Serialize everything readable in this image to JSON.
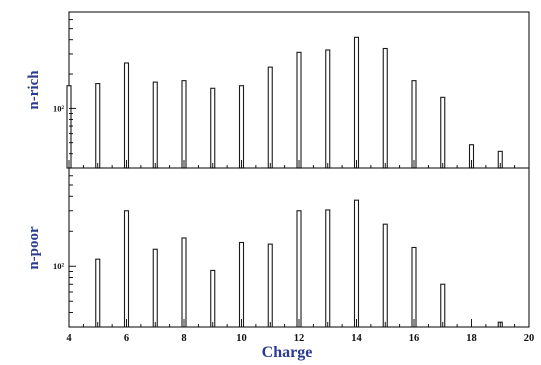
{
  "chart_data": {
    "type": "bar",
    "xlabel": "Charge",
    "x_ticks": [
      "4",
      "6",
      "8",
      "10",
      "12",
      "14",
      "16",
      "18",
      "20"
    ],
    "x_range": [
      4,
      20
    ],
    "y_scale": "log",
    "bar_color": "#1a1a1a",
    "panels": [
      {
        "ylabel": "n-rich",
        "y_tick_text": "10²",
        "y_tick_value": 100,
        "ylim": [
          30,
          700
        ],
        "x": [
          4,
          5,
          6,
          7,
          8,
          9,
          10,
          11,
          12,
          13,
          14,
          15,
          16,
          17,
          18,
          19
        ],
        "values": [
          158,
          165,
          250,
          170,
          175,
          150,
          158,
          230,
          310,
          325,
          420,
          335,
          175,
          125,
          48,
          42
        ]
      },
      {
        "ylabel": "n-poor",
        "y_tick_text": "10²",
        "y_tick_value": 100,
        "ylim": [
          30,
          700
        ],
        "x": [
          5,
          6,
          7,
          8,
          9,
          10,
          11,
          12,
          13,
          14,
          15,
          16,
          17,
          19
        ],
        "values": [
          115,
          300,
          140,
          175,
          92,
          160,
          155,
          300,
          305,
          370,
          230,
          145,
          70,
          33
        ]
      }
    ]
  }
}
